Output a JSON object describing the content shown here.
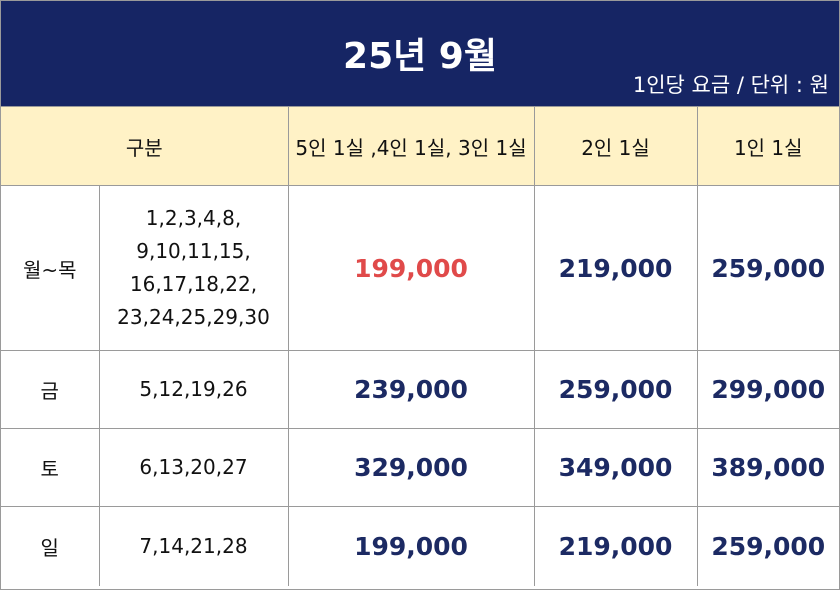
{
  "header": {
    "title": "25년 9월",
    "unit_note": "1인당 요금 / 단위 : 원"
  },
  "table": {
    "columns": [
      "구분",
      "5인 1실 ,4인 1실, 3인 1실",
      "2인 1실",
      "1인 1실"
    ],
    "rows": [
      {
        "day": "월~목",
        "dates": "1,2,3,4,8,\n9,10,11,15,\n16,17,18,22,\n23,24,25,29,30",
        "prices": [
          "199,000",
          "219,000",
          "259,000"
        ]
      },
      {
        "day": "금",
        "dates": "5,12,19,26",
        "prices": [
          "239,000",
          "259,000",
          "299,000"
        ]
      },
      {
        "day": "토",
        "dates": "6,13,20,27",
        "prices": [
          "329,000",
          "349,000",
          "389,000"
        ]
      },
      {
        "day": "일",
        "dates": "7,14,21,28",
        "prices": [
          "199,000",
          "219,000",
          "259,000"
        ]
      }
    ]
  },
  "colors": {
    "banner_bg": "#162564",
    "header_row_bg": "#fff2c6",
    "price_text": "#1c2a63",
    "highlight_price": "#e04a4a"
  }
}
